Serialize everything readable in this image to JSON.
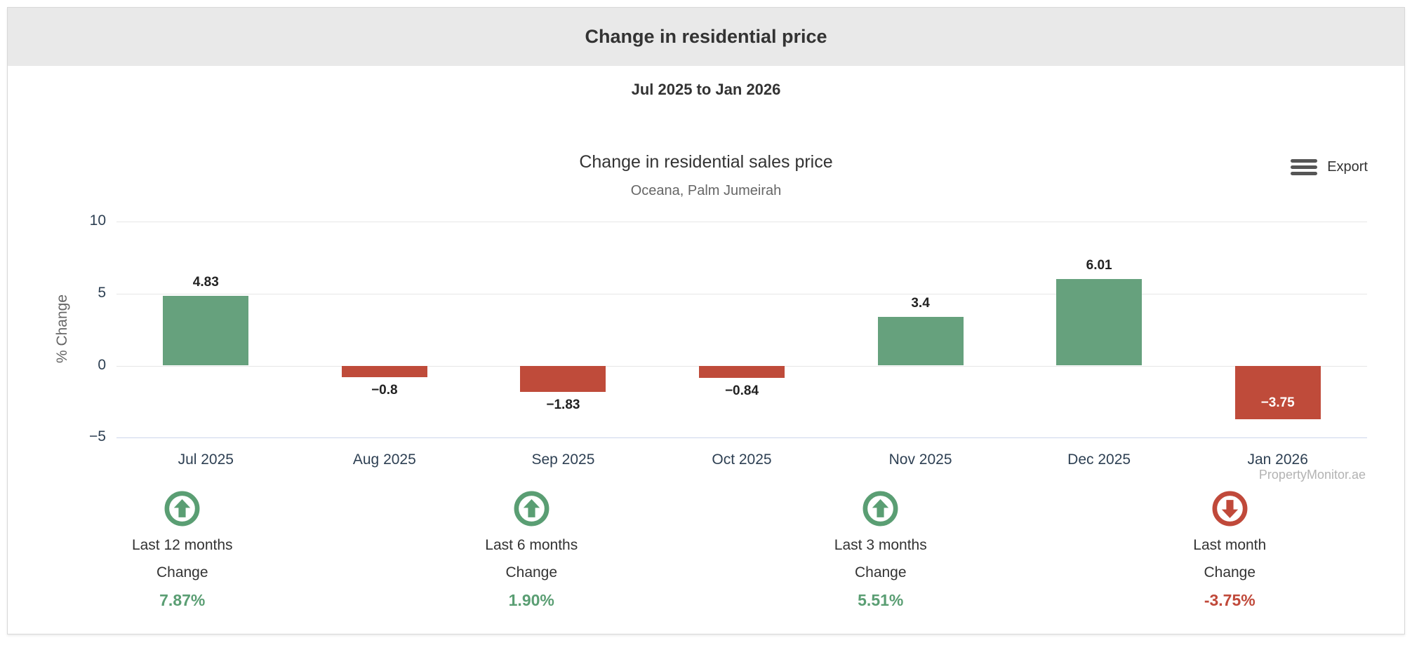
{
  "header": {
    "title": "Change in residential price"
  },
  "range_subtitle": "Jul 2025 to Jan 2026",
  "chart": {
    "title": "Change in residential sales price",
    "subtitle": "Oceana, Palm Jumeirah",
    "export_label": "Export",
    "y_axis_title": "% Change",
    "watermark": "PropertyMonitor.ae"
  },
  "chart_data": {
    "type": "bar",
    "title": "Change in residential sales price",
    "subtitle": "Oceana, Palm Jumeirah",
    "categories": [
      "Jul 2025",
      "Aug 2025",
      "Sep 2025",
      "Oct 2025",
      "Nov 2025",
      "Dec 2025",
      "Jan 2026"
    ],
    "values": [
      4.83,
      -0.8,
      -1.83,
      -0.84,
      3.4,
      6.01,
      -3.75
    ],
    "value_labels": [
      "4.83",
      "−0.8",
      "−1.83",
      "−0.84",
      "3.4",
      "6.01",
      "−3.75"
    ],
    "xlabel": "",
    "ylabel": "% Change",
    "ylim": [
      -5,
      10
    ],
    "yticks": [
      10,
      5,
      0,
      -5
    ],
    "ytick_labels": [
      "10",
      "5",
      "0",
      "−5"
    ],
    "grid": true,
    "legend": false
  },
  "stats": [
    {
      "label": "Last 12 months",
      "change_label": "Change",
      "value": "7.87%",
      "direction": "up"
    },
    {
      "label": "Last 6 months",
      "change_label": "Change",
      "value": "1.90%",
      "direction": "up"
    },
    {
      "label": "Last 3 months",
      "change_label": "Change",
      "value": "5.51%",
      "direction": "up"
    },
    {
      "label": "Last month",
      "change_label": "Change",
      "value": "-3.75%",
      "direction": "down"
    }
  ],
  "colors": {
    "positive_bar": "#66a17d",
    "negative_bar": "#bf4b3a",
    "up_text": "#5a9e73",
    "down_text": "#c0493a",
    "header_bg": "#e9e9e9",
    "gridline": "#e6e6e6",
    "axis_line": "#ccd6eb",
    "axis_label": "#2e4053",
    "data_label": "#222222",
    "inside_label": "#ffffff"
  }
}
